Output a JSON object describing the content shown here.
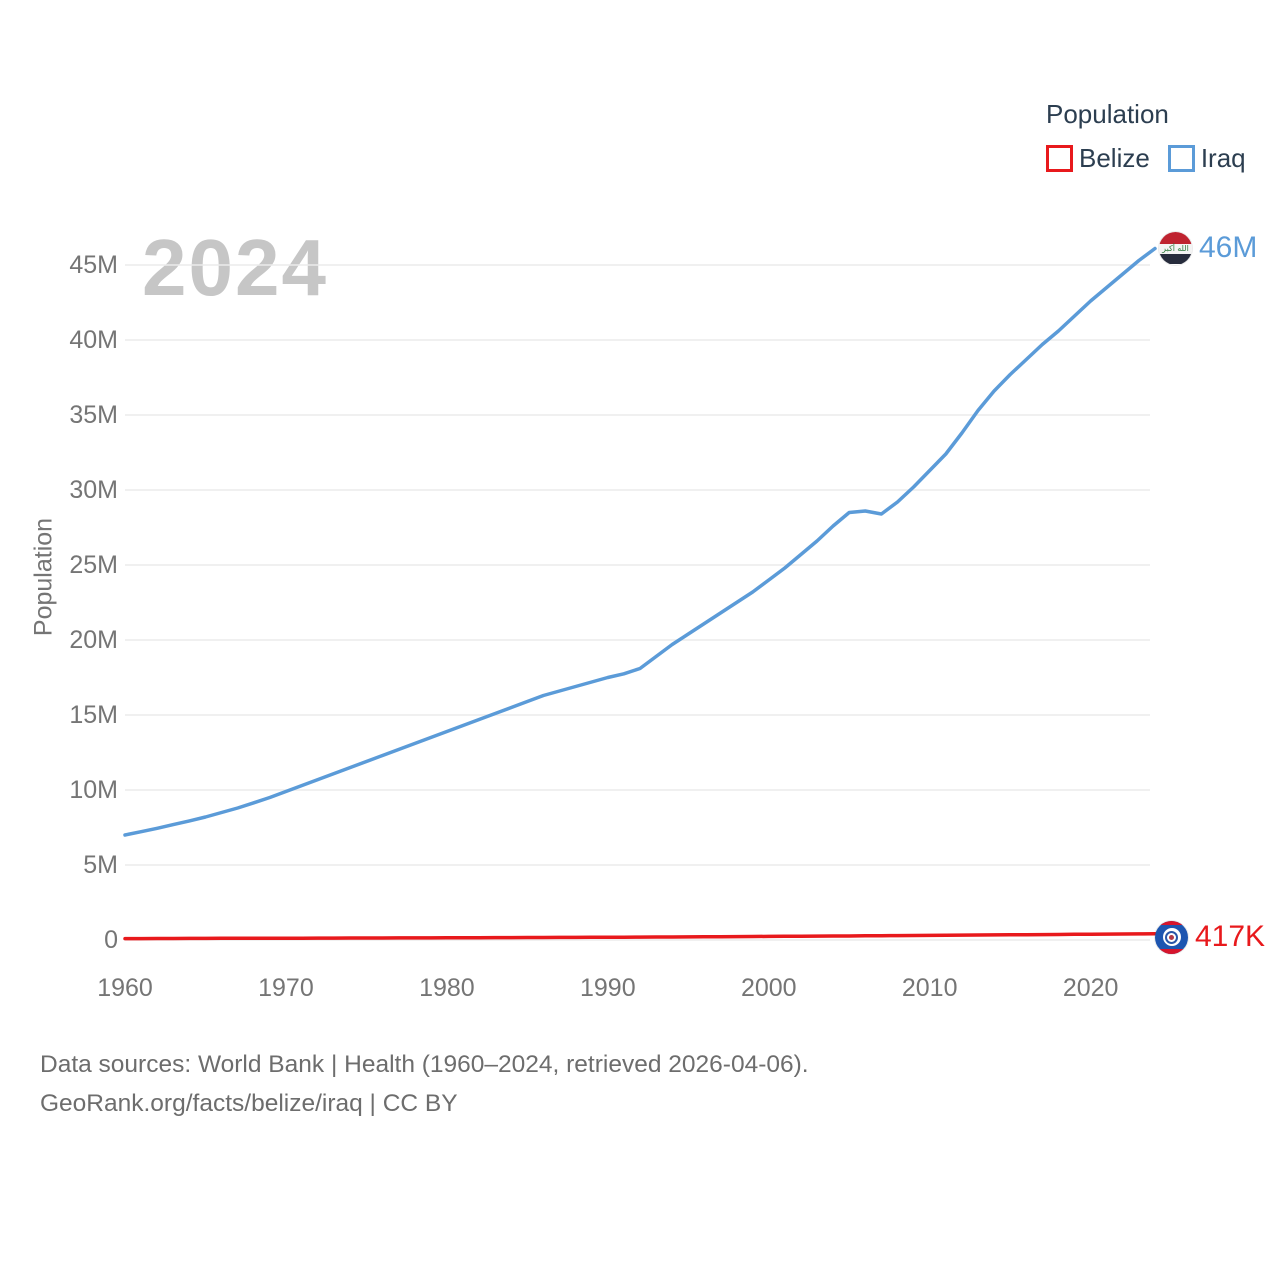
{
  "watermark": "2024",
  "legend": {
    "title": "Population",
    "items": [
      {
        "label": "Belize",
        "color": "#e8191c"
      },
      {
        "label": "Iraq",
        "color": "#5b9bd8"
      }
    ]
  },
  "y_axis": {
    "title": "Population",
    "ticks": [
      "0",
      "5M",
      "10M",
      "15M",
      "20M",
      "25M",
      "30M",
      "35M",
      "40M",
      "45M"
    ],
    "tick_values": [
      0,
      5,
      10,
      15,
      20,
      25,
      30,
      35,
      40,
      45
    ]
  },
  "x_axis": {
    "ticks": [
      "1960",
      "1970",
      "1980",
      "1990",
      "2000",
      "2010",
      "2020"
    ],
    "tick_values": [
      1960,
      1970,
      1980,
      1990,
      2000,
      2010,
      2020
    ]
  },
  "end_markers": {
    "iraq": {
      "label": "46M",
      "flag": "iraq-flag-icon"
    },
    "belize": {
      "label": "417K",
      "flag": "belize-flag-icon"
    }
  },
  "footer": {
    "line1": "Data sources: World Bank | Health (1960–2024, retrieved 2026-04-06).",
    "line2": "GeoRank.org/facts/belize/iraq | CC BY"
  },
  "chart_data": {
    "type": "line",
    "title": "Population",
    "xlabel": "",
    "ylabel": "Population",
    "xlim": [
      1960,
      2024
    ],
    "ylim": [
      0,
      47
    ],
    "grid": "horizontal",
    "legend_position": "top-right",
    "unit": "millions",
    "x": [
      1960,
      1961,
      1962,
      1963,
      1964,
      1965,
      1966,
      1967,
      1968,
      1969,
      1970,
      1971,
      1972,
      1973,
      1974,
      1975,
      1976,
      1977,
      1978,
      1979,
      1980,
      1981,
      1982,
      1983,
      1984,
      1985,
      1986,
      1987,
      1988,
      1989,
      1990,
      1991,
      1992,
      1993,
      1994,
      1995,
      1996,
      1997,
      1998,
      1999,
      2000,
      2001,
      2002,
      2003,
      2004,
      2005,
      2006,
      2007,
      2008,
      2009,
      2010,
      2011,
      2012,
      2013,
      2014,
      2015,
      2016,
      2017,
      2018,
      2019,
      2020,
      2021,
      2022,
      2023,
      2024
    ],
    "series": [
      {
        "name": "Belize",
        "color": "#e8191c",
        "end_label": "417K",
        "values": [
          0.092,
          0.095,
          0.098,
          0.101,
          0.105,
          0.109,
          0.111,
          0.113,
          0.115,
          0.118,
          0.12,
          0.123,
          0.125,
          0.128,
          0.13,
          0.133,
          0.135,
          0.138,
          0.14,
          0.143,
          0.145,
          0.149,
          0.153,
          0.157,
          0.161,
          0.166,
          0.169,
          0.172,
          0.175,
          0.179,
          0.182,
          0.187,
          0.192,
          0.197,
          0.202,
          0.207,
          0.213,
          0.22,
          0.226,
          0.233,
          0.24,
          0.246,
          0.252,
          0.258,
          0.264,
          0.27,
          0.277,
          0.285,
          0.292,
          0.3,
          0.308,
          0.316,
          0.324,
          0.332,
          0.34,
          0.348,
          0.356,
          0.363,
          0.37,
          0.378,
          0.385,
          0.394,
          0.402,
          0.41,
          0.417
        ]
      },
      {
        "name": "Iraq",
        "color": "#5b9bd8",
        "end_label": "46M",
        "values": [
          7.0,
          7.22,
          7.45,
          7.69,
          7.94,
          8.2,
          8.5,
          8.8,
          9.15,
          9.5,
          9.9,
          10.3,
          10.7,
          11.1,
          11.5,
          11.9,
          12.3,
          12.7,
          13.1,
          13.5,
          13.9,
          14.3,
          14.7,
          15.1,
          15.5,
          15.9,
          16.3,
          16.6,
          16.9,
          17.2,
          17.5,
          17.75,
          18.1,
          18.9,
          19.7,
          20.4,
          21.1,
          21.8,
          22.5,
          23.2,
          24.0,
          24.8,
          25.7,
          26.6,
          27.6,
          28.5,
          28.6,
          28.4,
          29.2,
          30.2,
          31.3,
          32.4,
          33.8,
          35.3,
          36.6,
          37.7,
          38.7,
          39.7,
          40.6,
          41.6,
          42.6,
          43.5,
          44.4,
          45.3,
          46.1
        ]
      }
    ]
  }
}
